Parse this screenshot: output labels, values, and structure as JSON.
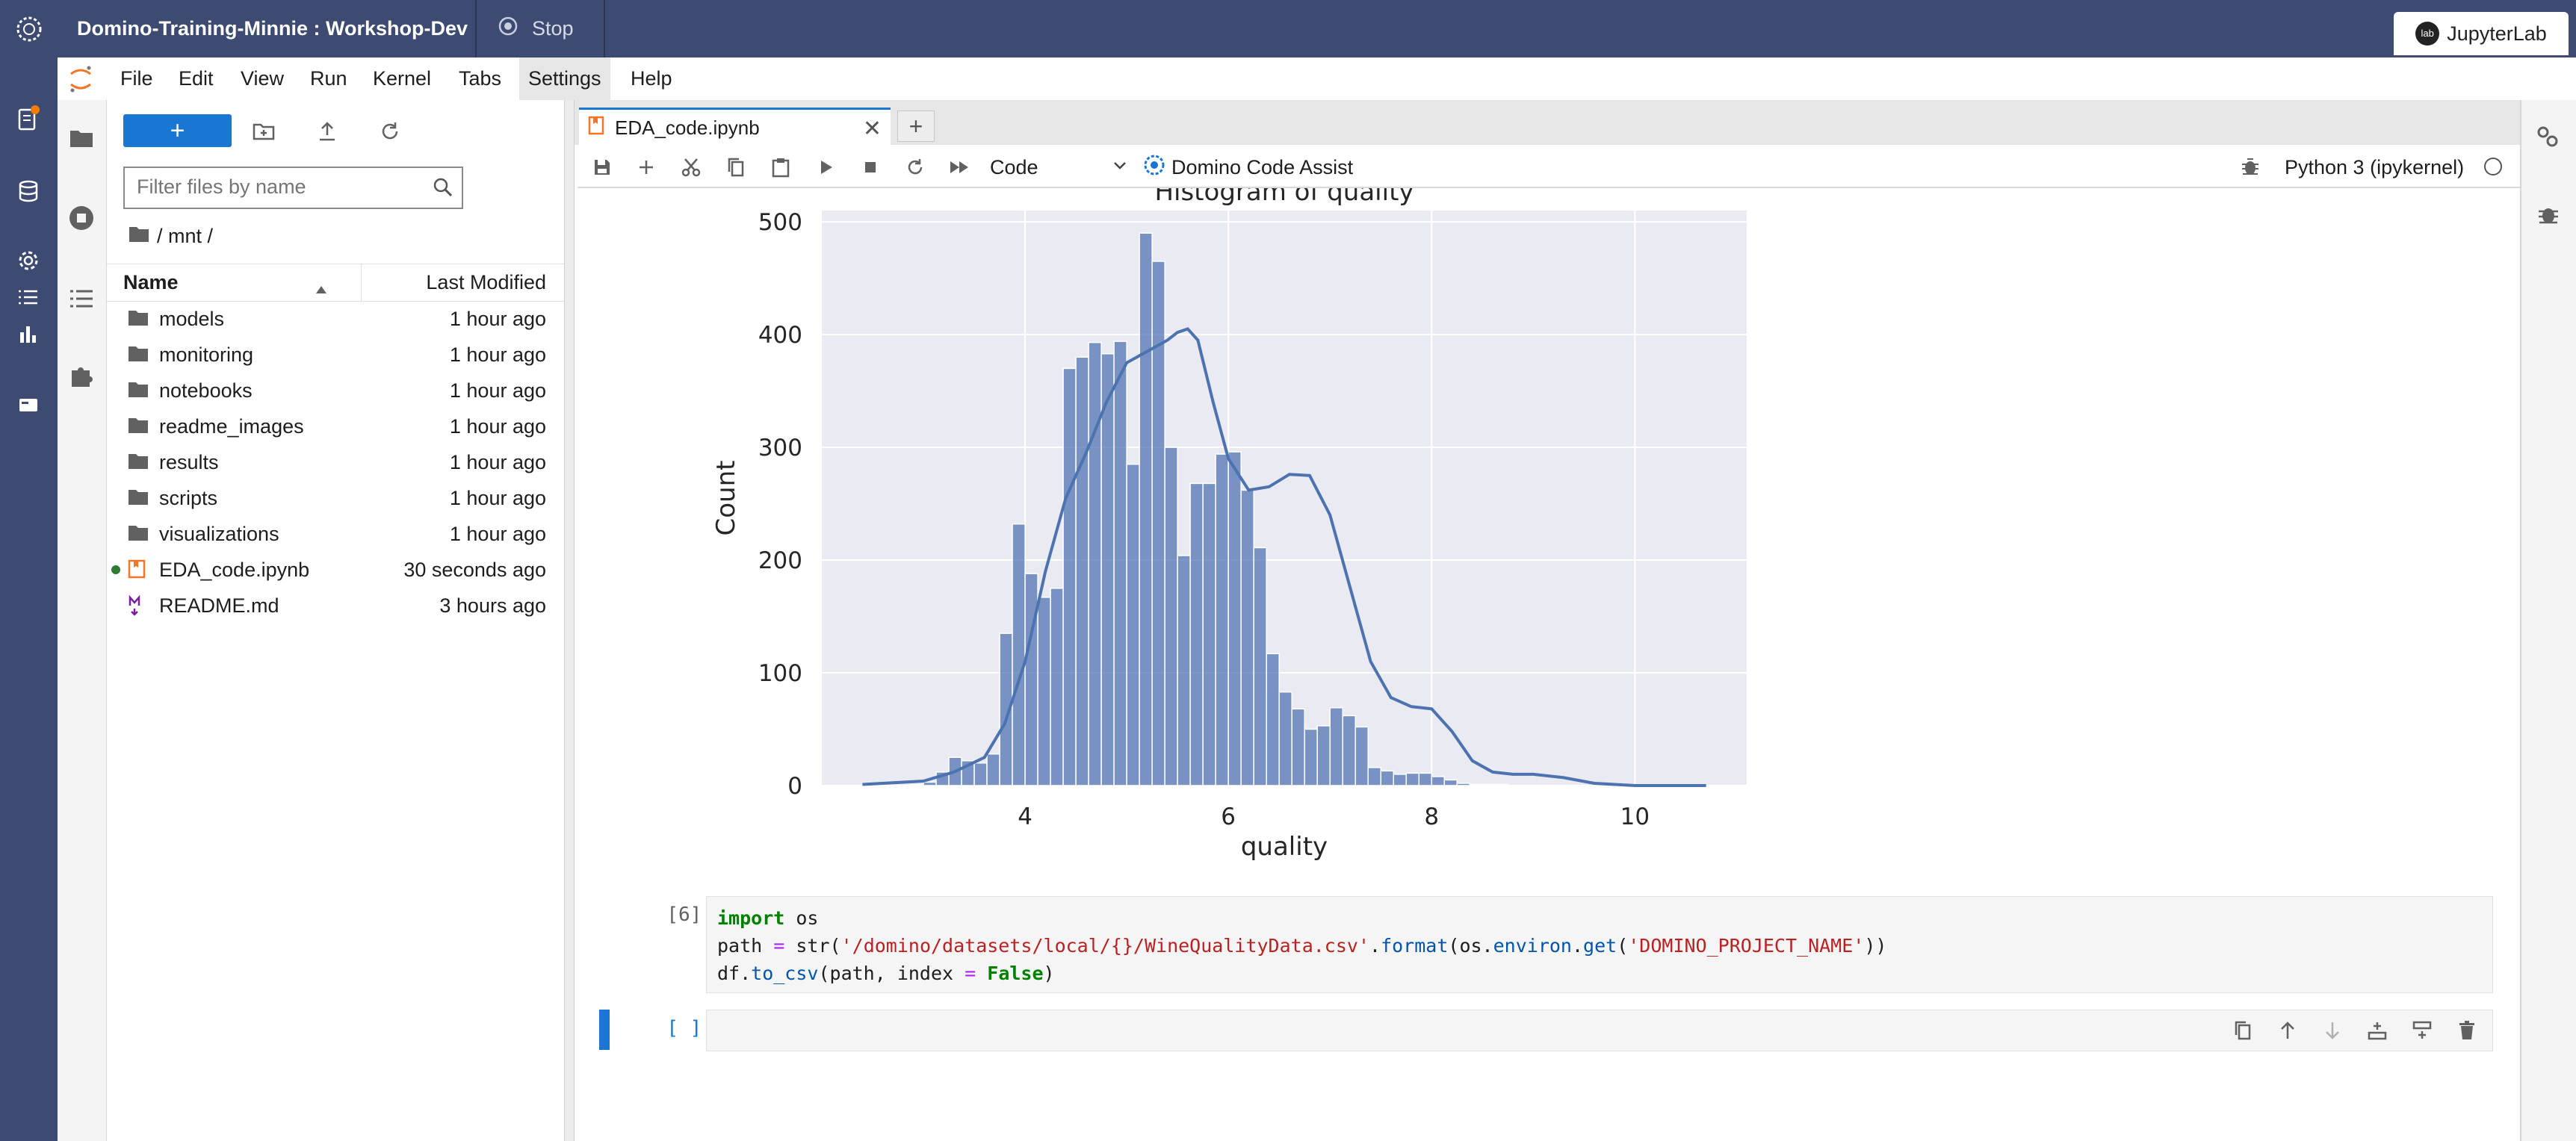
{
  "domino": {
    "project_title": "Domino-Training-Minnie : Workshop-Dev",
    "stop_label": "Stop",
    "app_badge": "JupyterLab",
    "badge_icon_text": "lab"
  },
  "menubar": {
    "items": [
      "File",
      "Edit",
      "View",
      "Run",
      "Kernel",
      "Tabs",
      "Settings",
      "Help"
    ]
  },
  "filebrowser": {
    "search_placeholder": "Filter files by name",
    "breadcrumb": "/ mnt /",
    "col_name": "Name",
    "col_modified": "Last Modified",
    "files": [
      {
        "name": "models",
        "modified": "1 hour ago",
        "type": "folder"
      },
      {
        "name": "monitoring",
        "modified": "1 hour ago",
        "type": "folder"
      },
      {
        "name": "notebooks",
        "modified": "1 hour ago",
        "type": "folder"
      },
      {
        "name": "readme_images",
        "modified": "1 hour ago",
        "type": "folder"
      },
      {
        "name": "results",
        "modified": "1 hour ago",
        "type": "folder"
      },
      {
        "name": "scripts",
        "modified": "1 hour ago",
        "type": "folder"
      },
      {
        "name": "visualizations",
        "modified": "1 hour ago",
        "type": "folder"
      },
      {
        "name": "EDA_code.ipynb",
        "modified": "30 seconds ago",
        "type": "notebook",
        "running": true
      },
      {
        "name": "README.md",
        "modified": "3 hours ago",
        "type": "markdown"
      }
    ]
  },
  "notebook": {
    "tab_label": "EDA_code.ipynb",
    "cell_type": "Code",
    "assist_label": "Domino Code Assist",
    "kernel_label": "Python 3 (ipykernel)",
    "cell6_prompt": "[6]:",
    "cell6_code": {
      "line1_kw": "import",
      "line1_rest": " os",
      "line2_a": "path ",
      "line2_eq": "=",
      "line2_b": " str(",
      "line2_str": "'/domino/datasets/local/{}/WineQualityData.csv'",
      "line2_c": ".",
      "line2_fmt": "format",
      "line2_d": "(os.",
      "line2_env": "environ",
      "line2_e": ".",
      "line2_get": "get",
      "line2_f": "(",
      "line2_str2": "'DOMINO_PROJECT_NAME'",
      "line2_g": "))",
      "line3_a": "df.",
      "line3_fn": "to_csv",
      "line3_b": "(path, index ",
      "line3_eq": "=",
      "line3_sp": " ",
      "line3_false": "False",
      "line3_c": ")"
    },
    "new_cell_prompt": "[ ]:"
  },
  "chart_data": {
    "type": "bar",
    "title": "Histogram of quality",
    "xlabel": "quality",
    "ylabel": "Count",
    "xlim": [
      2.0,
      11.1
    ],
    "ylim": [
      0,
      510
    ],
    "xticks": [
      4,
      6,
      8,
      10
    ],
    "yticks": [
      0,
      100,
      200,
      300,
      400,
      500
    ],
    "bin_width": 0.125,
    "bins_start": 2.875,
    "values": [
      1,
      3,
      12,
      25,
      22,
      20,
      28,
      135,
      232,
      188,
      167,
      175,
      370,
      380,
      393,
      383,
      394,
      285,
      490,
      465,
      300,
      204,
      268,
      268,
      294,
      296,
      262,
      211,
      117,
      83,
      68,
      50,
      53,
      69,
      62,
      52,
      16,
      13,
      10,
      11,
      11,
      8,
      5,
      2,
      1,
      1,
      1
    ],
    "kde": [
      [
        2.4,
        1
      ],
      [
        3.0,
        4
      ],
      [
        3.3,
        12
      ],
      [
        3.6,
        25
      ],
      [
        3.8,
        55
      ],
      [
        4.0,
        110
      ],
      [
        4.2,
        190
      ],
      [
        4.4,
        255
      ],
      [
        4.6,
        295
      ],
      [
        4.8,
        340
      ],
      [
        5.0,
        375
      ],
      [
        5.2,
        385
      ],
      [
        5.4,
        395
      ],
      [
        5.5,
        402
      ],
      [
        5.6,
        405
      ],
      [
        5.7,
        395
      ],
      [
        5.85,
        340
      ],
      [
        6.0,
        290
      ],
      [
        6.2,
        262
      ],
      [
        6.4,
        265
      ],
      [
        6.6,
        276
      ],
      [
        6.8,
        275
      ],
      [
        7.0,
        240
      ],
      [
        7.2,
        175
      ],
      [
        7.4,
        110
      ],
      [
        7.6,
        78
      ],
      [
        7.8,
        70
      ],
      [
        8.0,
        68
      ],
      [
        8.2,
        48
      ],
      [
        8.4,
        22
      ],
      [
        8.6,
        12
      ],
      [
        8.8,
        10
      ],
      [
        9.0,
        10
      ],
      [
        9.3,
        7
      ],
      [
        9.6,
        2
      ],
      [
        10.0,
        0
      ],
      [
        10.7,
        0
      ]
    ],
    "bar_color": "#4c72b0",
    "background": "#eaeaf2",
    "grid": true
  },
  "colors": {
    "domino_nav": "#3d4a72",
    "jupyter_blue": "#1976d2",
    "notify_dot": "#f57c00"
  }
}
